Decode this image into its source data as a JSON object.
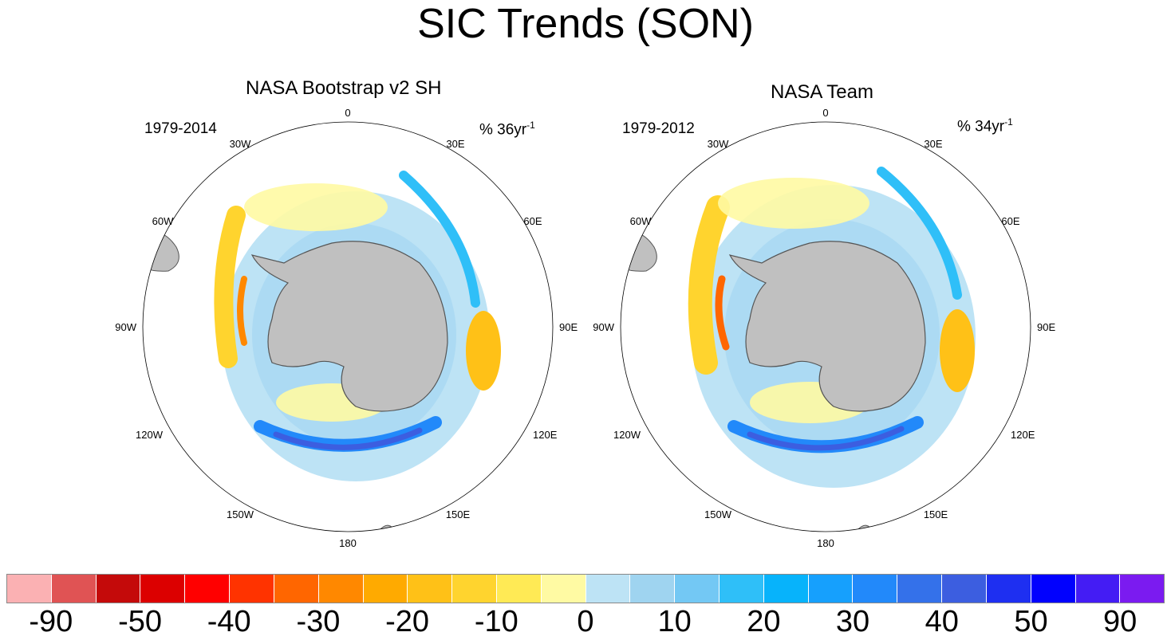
{
  "title": "SIC Trends (SON)",
  "panels": [
    {
      "subtitle": "NASA Bootstrap v2 SH",
      "period": "1979-2014",
      "units_prefix": "% 36yr",
      "units_exp": "-1"
    },
    {
      "subtitle": "NASA Team",
      "period": "1979-2012",
      "units_prefix": "% 34yr",
      "units_exp": "-1"
    }
  ],
  "longitude_labels": [
    "0",
    "30E",
    "60E",
    "90E",
    "120E",
    "150E",
    "180",
    "150W",
    "120W",
    "90W",
    "60W",
    "30W"
  ],
  "colors": {
    "land": "#c0c0c0",
    "coast": "#555555"
  },
  "colorbar": {
    "colors": [
      "#fbb1b3",
      "#e05354",
      "#c40a0a",
      "#dc0000",
      "#ff0000",
      "#ff3300",
      "#ff6600",
      "#ff8800",
      "#ffaa00",
      "#ffc117",
      "#ffd42e",
      "#ffea55",
      "#fffaa3",
      "#bde3f5",
      "#9fd4f0",
      "#73c8f4",
      "#2fbff8",
      "#07b3fb",
      "#16a0fd",
      "#2289fa",
      "#3471ea",
      "#3c5ee0",
      "#1e2ff1",
      "#0101fe",
      "#441cf4",
      "#7b1bf0"
    ],
    "tick_labels": [
      "-90",
      "-50",
      "-40",
      "-30",
      "-20",
      "-10",
      "0",
      "10",
      "20",
      "30",
      "40",
      "50",
      "90"
    ]
  }
}
